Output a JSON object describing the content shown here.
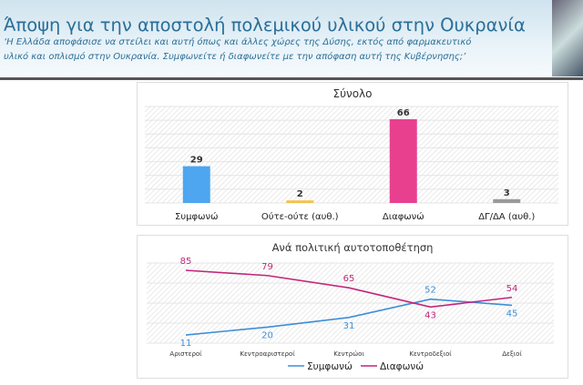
{
  "header": {
    "title": "Άποψη για την αποστολή πολεμικού υλικού στην Ουκρανία",
    "subtitle_line1": "‘Η Ελλάδα αποφάσισε να στείλει και αυτή όπως και άλλες χώρες της Δύσης, εκτός από φαρμακευτικό",
    "subtitle_line2": "υλικό και οπλισμό στην Ουκρανία. Συμφωνείτε ή διαφωνείτε με την απόφαση αυτή της Κυβέρνησης;’"
  },
  "chart_data": [
    {
      "type": "bar",
      "title": "Σύνολο",
      "categories": [
        "Συμφωνώ",
        "Ούτε-ούτε (αυθ.)",
        "Διαφωνώ",
        "ΔΓ/ΔΑ (αυθ.)"
      ],
      "values": [
        29,
        2,
        66,
        3
      ],
      "colors": [
        "#4da6ef",
        "#f2c24a",
        "#e8408f",
        "#9a9a9a"
      ],
      "ylim": [
        0,
        66
      ]
    },
    {
      "type": "line",
      "title": "Ανά πολιτική αυτοτοποθέτηση",
      "categories": [
        "Αριστεροί",
        "Κεντροαριστεροί",
        "Κεντρώοι",
        "Κεντροδεξιοί",
        "Δεξιοί"
      ],
      "series": [
        {
          "name": "Συμφωνώ",
          "values": [
            11,
            20,
            31,
            52,
            45
          ],
          "color": "#3d8ed8"
        },
        {
          "name": "Διαφωνώ",
          "values": [
            85,
            79,
            65,
            43,
            54
          ],
          "color": "#c2257a"
        }
      ],
      "legend": "bottom"
    }
  ]
}
